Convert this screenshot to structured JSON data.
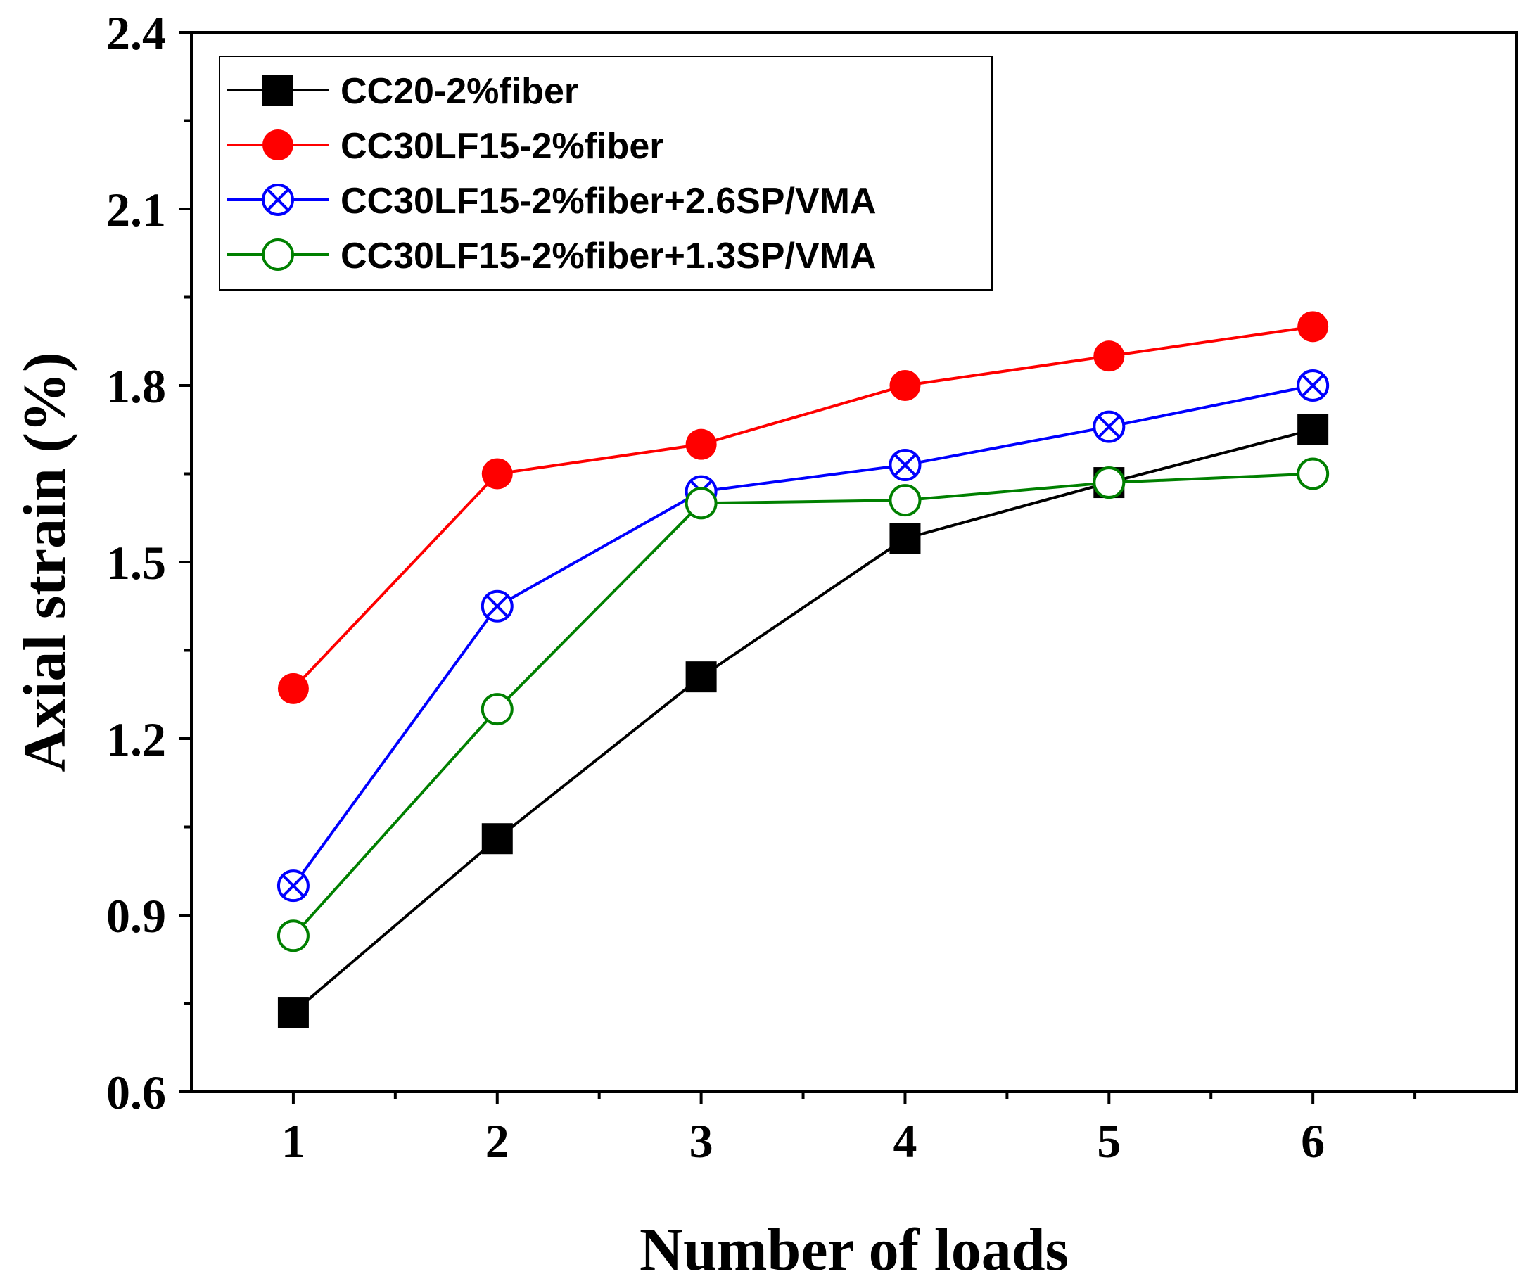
{
  "chart_data": {
    "type": "line",
    "title": "",
    "xlabel": "Number of loads",
    "ylabel": "Axial strain (%)",
    "x": [
      1,
      2,
      3,
      4,
      5,
      6
    ],
    "xlim": [
      0.5,
      7.0
    ],
    "ylim": [
      0.6,
      2.4
    ],
    "xticks": [
      "1",
      "2",
      "3",
      "4",
      "5",
      "6"
    ],
    "yticks": [
      "0.6",
      "0.9",
      "1.2",
      "1.5",
      "1.8",
      "2.1",
      "2.4"
    ],
    "grid": false,
    "legend_position": "top-left",
    "series": [
      {
        "name": "CC20-2%fiber",
        "color": "#000000",
        "marker": "filled-square",
        "values": [
          0.735,
          1.03,
          1.305,
          1.54,
          1.635,
          1.725
        ]
      },
      {
        "name": "CC30LF15-2%fiber",
        "color": "#ff0000",
        "marker": "filled-circle",
        "values": [
          1.285,
          1.65,
          1.7,
          1.8,
          1.85,
          1.9
        ]
      },
      {
        "name": "CC30LF15-2%fiber+2.6SP/VMA",
        "color": "#0000ff",
        "marker": "crossed-circle",
        "values": [
          0.95,
          1.425,
          1.62,
          1.665,
          1.73,
          1.8
        ]
      },
      {
        "name": "CC30LF15-2%fiber+1.3SP/VMA",
        "color": "#008000",
        "marker": "open-circle",
        "values": [
          0.865,
          1.25,
          1.6,
          1.605,
          1.635,
          1.65
        ]
      }
    ]
  }
}
